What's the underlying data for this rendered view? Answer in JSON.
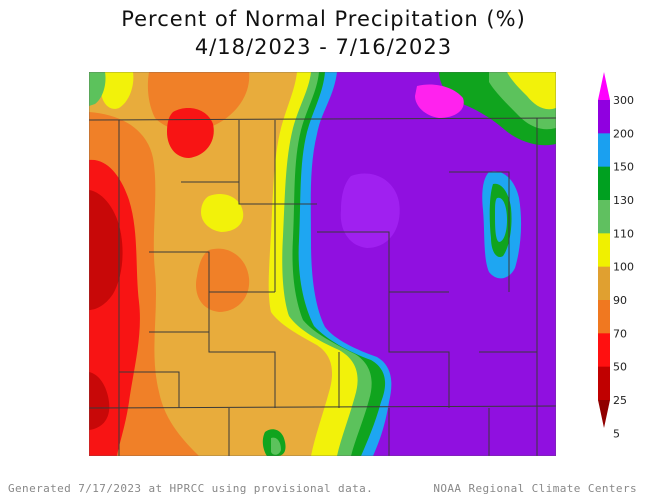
{
  "title": {
    "line1": "Percent of Normal Precipitation (%)",
    "line2": "4/18/2023 - 7/16/2023"
  },
  "footer": {
    "left": "Generated 7/17/2023 at HPRCC using provisional data.",
    "right": "NOAA Regional Climate Centers"
  },
  "legend": {
    "labels": [
      "300",
      "200",
      "150",
      "130",
      "110",
      "100",
      "90",
      "70",
      "50",
      "25",
      "5"
    ],
    "colors": [
      "#ff00ff",
      "#9000e0",
      "#1aa0f0",
      "#00a020",
      "#60c060",
      "#f0f000",
      "#e0a030",
      "#f07820",
      "#ff1010",
      "#c00000",
      "#900000"
    ]
  },
  "palette": {
    "purple": "#9010e0",
    "magenta": "#ff22ee",
    "blue": "#1ea6f2",
    "green": "#10a41e",
    "lightgreen": "#5cc25c",
    "yellow": "#f2f20a",
    "gold": "#e8ac3c",
    "orange": "#f08028",
    "red": "#f81414",
    "darkred": "#c80808"
  }
}
